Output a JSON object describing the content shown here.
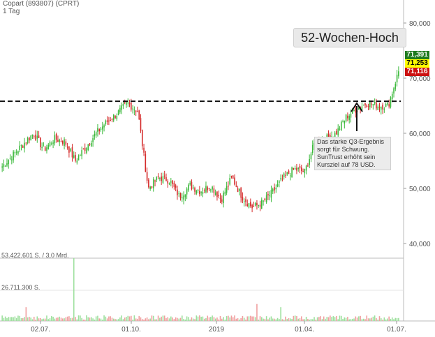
{
  "header": {
    "title": "Copart (893807) (CPRT)",
    "interval": "1 Tag"
  },
  "annotations": {
    "high_label": "52-Wochen-Hoch",
    "note_text": "Das starke Q3-Ergebnis sorgt für Schwung. SunTrust erhöht sein Kursziel auf 78 USD."
  },
  "price_boxes": [
    {
      "value": "71,391",
      "bg": "#1e7a1e",
      "fg": "#ffffff"
    },
    {
      "value": "71,253",
      "bg": "#ffff00",
      "fg": "#000000"
    },
    {
      "value": "71,116",
      "bg": "#cc1111",
      "fg": "#ffffff"
    }
  ],
  "colors": {
    "up": "#3cb93c",
    "down": "#d42a2a",
    "grid": "#dcdcdc"
  },
  "chart_data": [
    {
      "type": "candlestick",
      "title": "Copart (893807) (CPRT)",
      "interval": "1 Tag",
      "ylim": [
        40,
        82
      ],
      "yticks": [
        "80,000",
        "70,000",
        "60,000",
        "50,000",
        "40,000"
      ],
      "ytick_values": [
        80,
        70,
        60,
        50,
        40
      ],
      "xticks": [
        "02.07.",
        "01.10.",
        "2019",
        "01.04.",
        "01.07."
      ],
      "resistance_level": 65.8,
      "series": [
        {
          "name": "close",
          "values": [
            54.0,
            56.0,
            58.0,
            60.0,
            57.0,
            59.0,
            58.5,
            55.0,
            57.5,
            60.0,
            62.0,
            63.5,
            65.5,
            64.0,
            50.0,
            52.0,
            51.5,
            48.5,
            50.5,
            49.5,
            50.5,
            48.0,
            52.0,
            48.5,
            46.5,
            47.5,
            49.5,
            52.0,
            53.5,
            53.0,
            58.5,
            59.0,
            60.0,
            63.0,
            64.5,
            65.5,
            65.0,
            65.0,
            71.25
          ]
        }
      ]
    },
    {
      "type": "bar",
      "title": "",
      "labels": [
        "53.422.601 S. / 3,0 Mrd.",
        "26.711.300 S."
      ],
      "ylim": [
        0,
        53422601
      ]
    }
  ]
}
